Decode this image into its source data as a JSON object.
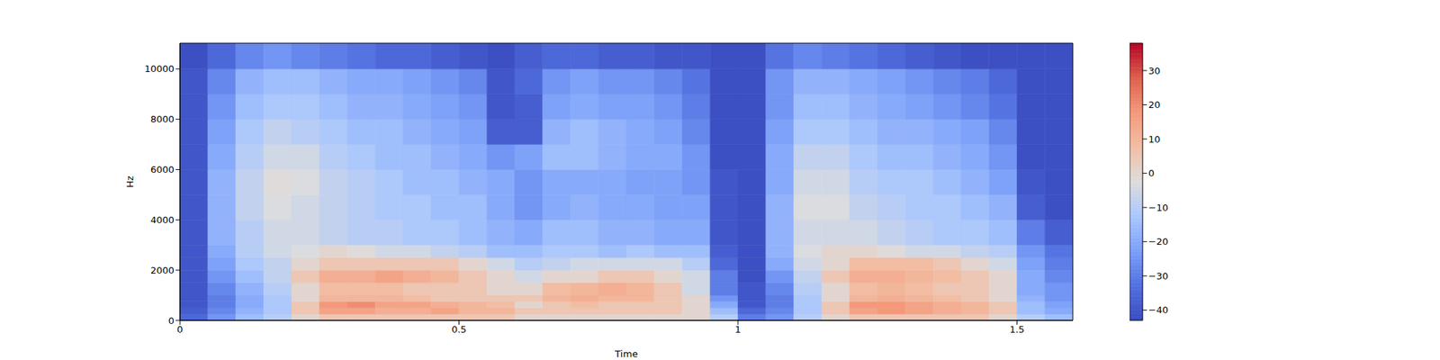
{
  "chart_data": {
    "type": "heatmap",
    "x_label": "Time",
    "y_label": "Hz",
    "xlim": [
      0,
      1.6
    ],
    "xticks": [
      0,
      0.5,
      1,
      1.5
    ],
    "ylim": [
      0,
      11025
    ],
    "yticks": [
      0,
      2000,
      4000,
      6000,
      8000,
      10000
    ],
    "time_edges": [
      0,
      0.05,
      0.1,
      0.15,
      0.2,
      0.25,
      0.3,
      0.35,
      0.4,
      0.45,
      0.5,
      0.55,
      0.6,
      0.65,
      0.7,
      0.75,
      0.8,
      0.85,
      0.9,
      0.95,
      1,
      1.05,
      1.1,
      1.15,
      1.2,
      1.25,
      1.3,
      1.35,
      1.4,
      1.45,
      1.5,
      1.55,
      1.6
    ],
    "freq_edges": [
      0,
      250,
      500,
      750,
      1000,
      1500,
      2000,
      2500,
      3000,
      4000,
      5000,
      6000,
      7000,
      8000,
      9000,
      10000,
      11025
    ],
    "cells": [
      [
        -35,
        -25,
        -15,
        -10,
        0,
        5,
        5,
        5,
        5,
        5,
        5,
        5,
        0,
        0,
        0,
        0,
        0,
        0,
        0,
        -10,
        -30,
        -25,
        -10,
        0,
        5,
        5,
        5,
        5,
        5,
        0,
        -10,
        -15
      ],
      [
        -38,
        -28,
        -18,
        -12,
        5,
        15,
        15,
        12,
        12,
        15,
        10,
        10,
        5,
        5,
        5,
        5,
        5,
        5,
        0,
        -15,
        -35,
        -28,
        -12,
        5,
        15,
        18,
        15,
        12,
        10,
        5,
        -15,
        -20
      ],
      [
        -40,
        -30,
        -20,
        -12,
        5,
        18,
        20,
        15,
        15,
        12,
        10,
        8,
        0,
        5,
        8,
        5,
        5,
        5,
        0,
        -20,
        -40,
        -30,
        -12,
        5,
        18,
        18,
        15,
        12,
        10,
        5,
        -15,
        -22
      ],
      [
        -40,
        -30,
        -20,
        -12,
        0,
        10,
        10,
        10,
        8,
        5,
        5,
        5,
        5,
        10,
        12,
        10,
        10,
        5,
        0,
        -25,
        -40,
        -30,
        -12,
        0,
        10,
        12,
        10,
        8,
        5,
        0,
        -18,
        -25
      ],
      [
        -40,
        -28,
        -18,
        -10,
        0,
        8,
        8,
        8,
        5,
        5,
        5,
        0,
        0,
        8,
        10,
        12,
        10,
        5,
        -5,
        -30,
        -40,
        -28,
        -10,
        0,
        8,
        10,
        8,
        5,
        5,
        0,
        -20,
        -25
      ],
      [
        -40,
        -25,
        -15,
        -8,
        5,
        12,
        12,
        15,
        12,
        10,
        5,
        0,
        -5,
        0,
        0,
        5,
        5,
        0,
        -5,
        -30,
        -42,
        -25,
        -8,
        5,
        12,
        12,
        10,
        8,
        5,
        0,
        -20,
        -28
      ],
      [
        -40,
        -22,
        -12,
        -8,
        0,
        5,
        5,
        5,
        5,
        5,
        0,
        -5,
        -10,
        -8,
        -5,
        -5,
        -5,
        -5,
        -10,
        -35,
        -42,
        -20,
        -5,
        0,
        8,
        8,
        8,
        5,
        0,
        -5,
        -22,
        -30
      ],
      [
        -40,
        -20,
        -10,
        -5,
        -3,
        0,
        -2,
        -5,
        -5,
        -8,
        -10,
        -15,
        -15,
        -12,
        -12,
        -15,
        -12,
        -15,
        -15,
        -38,
        -42,
        -18,
        -3,
        0,
        0,
        -2,
        -5,
        -5,
        -8,
        -10,
        -25,
        -32
      ],
      [
        -40,
        -18,
        -10,
        -5,
        -5,
        -8,
        -10,
        -10,
        -12,
        -12,
        -15,
        -18,
        -20,
        -15,
        -15,
        -18,
        -18,
        -20,
        -20,
        -40,
        -42,
        -18,
        -5,
        -5,
        -5,
        -8,
        -10,
        -12,
        -12,
        -15,
        -30,
        -38
      ],
      [
        -40,
        -18,
        -8,
        -3,
        -5,
        -8,
        -10,
        -12,
        -12,
        -15,
        -15,
        -20,
        -25,
        -20,
        -18,
        -20,
        -20,
        -22,
        -22,
        -40,
        -42,
        -18,
        -3,
        -3,
        -8,
        -10,
        -12,
        -12,
        -15,
        -18,
        -38,
        -42
      ],
      [
        -40,
        -18,
        -8,
        -2,
        -3,
        -8,
        -10,
        -12,
        -15,
        -15,
        -18,
        -20,
        -25,
        -20,
        -20,
        -20,
        -22,
        -22,
        -25,
        -40,
        -42,
        -20,
        -5,
        -5,
        -10,
        -12,
        -12,
        -15,
        -18,
        -22,
        -40,
        -42
      ],
      [
        -40,
        -20,
        -10,
        -5,
        -5,
        -10,
        -12,
        -15,
        -15,
        -18,
        -20,
        -25,
        -22,
        -15,
        -15,
        -18,
        -20,
        -20,
        -25,
        -42,
        -42,
        -20,
        -8,
        -8,
        -12,
        -15,
        -15,
        -18,
        -20,
        -25,
        -42,
        -42
      ],
      [
        -40,
        -22,
        -12,
        -8,
        -10,
        -12,
        -15,
        -15,
        -18,
        -20,
        -22,
        -38,
        -38,
        -18,
        -15,
        -18,
        -20,
        -22,
        -28,
        -42,
        -42,
        -22,
        -12,
        -12,
        -15,
        -18,
        -18,
        -20,
        -22,
        -28,
        -42,
        -42
      ],
      [
        -40,
        -25,
        -15,
        -12,
        -12,
        -15,
        -18,
        -18,
        -20,
        -22,
        -25,
        -40,
        -38,
        -22,
        -20,
        -22,
        -22,
        -25,
        -30,
        -42,
        -42,
        -25,
        -15,
        -15,
        -18,
        -20,
        -22,
        -25,
        -28,
        -32,
        -42,
        -42
      ],
      [
        -40,
        -28,
        -18,
        -15,
        -15,
        -18,
        -20,
        -20,
        -22,
        -25,
        -28,
        -40,
        -35,
        -25,
        -22,
        -25,
        -25,
        -28,
        -32,
        -42,
        -42,
        -25,
        -18,
        -18,
        -20,
        -22,
        -25,
        -28,
        -30,
        -35,
        -42,
        -42
      ],
      [
        -42,
        -35,
        -28,
        -25,
        -28,
        -30,
        -32,
        -35,
        -35,
        -38,
        -40,
        -42,
        -38,
        -35,
        -35,
        -38,
        -38,
        -40,
        -40,
        -42,
        -42,
        -32,
        -28,
        -30,
        -32,
        -35,
        -38,
        -40,
        -42,
        -42,
        -42,
        -42
      ]
    ],
    "colorbar": {
      "range": [
        -43,
        38
      ],
      "ticks": [
        {
          "value": -40,
          "label": "−40"
        },
        {
          "value": -30,
          "label": "−30"
        },
        {
          "value": -20,
          "label": "−20"
        },
        {
          "value": -10,
          "label": "−10"
        },
        0,
        10,
        20,
        30
      ]
    }
  }
}
